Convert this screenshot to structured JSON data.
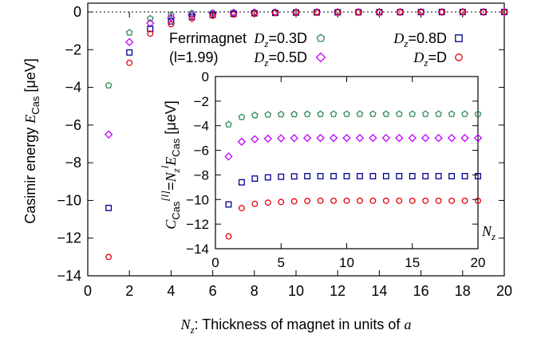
{
  "chart_data": {
    "type": "scatter",
    "xlabel_italic": "N",
    "xlabel_sub": "z",
    "xlabel_rest": ": Thickness of magnet in units of ",
    "xlabel_unit": "a",
    "ylabel_main": "Casimir energy ",
    "ylabel_var": "E",
    "ylabel_sub": "Cas",
    "ylabel_unit": " [μeV]",
    "xlim": [
      0,
      20
    ],
    "ylim": [
      -14,
      0.5
    ],
    "xticks": [
      "0",
      "2",
      "4",
      "6",
      "8",
      "10",
      "12",
      "14",
      "16",
      "18",
      "20"
    ],
    "xtick_values": [
      0,
      2,
      4,
      6,
      8,
      10,
      12,
      14,
      16,
      18,
      20
    ],
    "yticks": [
      "0",
      "−2",
      "−4",
      "−6",
      "−8",
      "−10",
      "−12",
      "−14"
    ],
    "ytick_values": [
      0,
      -2,
      -4,
      -6,
      -8,
      -10,
      -12,
      -14
    ],
    "legend_title_1": "Ferrimagnet",
    "legend_title_2": "(l=1.99)",
    "series": [
      {
        "name": "Dz=0.3D",
        "label_var": "D",
        "label_sub": "z",
        "label_rest": "=0.3D",
        "color": "#2e8b57",
        "marker": "pentagon",
        "x": [
          1,
          2,
          3,
          4,
          5,
          6,
          7,
          8,
          9,
          10,
          11,
          12,
          13,
          14,
          15,
          16,
          17,
          18,
          19,
          20
        ],
        "y": [
          -3.9,
          -1.1,
          -0.35,
          -0.15,
          -0.07,
          -0.04,
          -0.02,
          -0.015,
          -0.01,
          -0.007,
          -0.005,
          -0.004,
          -0.003,
          -0.0025,
          -0.002,
          -0.0015,
          -0.0012,
          -0.001,
          -0.0008,
          -0.0007
        ]
      },
      {
        "name": "Dz=0.5D",
        "label_var": "D",
        "label_sub": "z",
        "label_rest": "=0.5D",
        "color": "#c000ff",
        "marker": "diamond",
        "x": [
          1,
          2,
          3,
          4,
          5,
          6,
          7,
          8,
          9,
          10,
          11,
          12,
          13,
          14,
          15,
          16,
          17,
          18,
          19,
          20
        ],
        "y": [
          -6.5,
          -1.6,
          -0.6,
          -0.3,
          -0.15,
          -0.08,
          -0.05,
          -0.03,
          -0.02,
          -0.015,
          -0.01,
          -0.008,
          -0.006,
          -0.005,
          -0.004,
          -0.003,
          -0.0025,
          -0.002,
          -0.0015,
          -0.0012
        ]
      },
      {
        "name": "Dz=0.8D",
        "label_var": "D",
        "label_sub": "z",
        "label_rest": "=0.8D",
        "color": "#000090",
        "marker": "square",
        "x": [
          1,
          2,
          3,
          4,
          5,
          6,
          7,
          8,
          9,
          10,
          11,
          12,
          13,
          14,
          15,
          16,
          17,
          18,
          19,
          20
        ],
        "y": [
          -10.4,
          -2.15,
          -0.9,
          -0.5,
          -0.25,
          -0.15,
          -0.1,
          -0.07,
          -0.05,
          -0.035,
          -0.025,
          -0.02,
          -0.015,
          -0.012,
          -0.01,
          -0.008,
          -0.006,
          -0.005,
          -0.004,
          -0.0035
        ]
      },
      {
        "name": "Dz=D",
        "label_var": "D",
        "label_sub": "z",
        "label_rest": "=D",
        "color": "#e8000b",
        "marker": "circle",
        "x": [
          1,
          2,
          3,
          4,
          5,
          6,
          7,
          8,
          9,
          10,
          11,
          12,
          13,
          14,
          15,
          16,
          17,
          18,
          19,
          20
        ],
        "y": [
          -13.0,
          -2.7,
          -1.15,
          -0.65,
          -0.35,
          -0.2,
          -0.13,
          -0.09,
          -0.06,
          -0.045,
          -0.035,
          -0.028,
          -0.022,
          -0.018,
          -0.015,
          -0.012,
          -0.01,
          -0.008,
          -0.007,
          -0.006
        ]
      }
    ],
    "inset": {
      "xlim": [
        0,
        20
      ],
      "ylim": [
        -14,
        0
      ],
      "xticks": [
        "0",
        "5",
        "10",
        "15",
        "20"
      ],
      "xtick_values": [
        0,
        5,
        10,
        15,
        20
      ],
      "yticks": [
        "0",
        "−2",
        "−4",
        "−6",
        "−8",
        "−10",
        "−12",
        "−14"
      ],
      "ytick_values": [
        0,
        -2,
        -4,
        -6,
        -8,
        -10,
        -12,
        -14
      ],
      "xlabel_var": "N",
      "xlabel_sub": "z",
      "ylabel_c": "C",
      "ylabel_csub": "Cas",
      "ylabel_sup": "[l]",
      "ylabel_eq": "=",
      "ylabel_n": "N",
      "ylabel_nsub": "z",
      "ylabel_nsup": "l",
      "ylabel_e": "E",
      "ylabel_esub": "Cas",
      "ylabel_unit": " [μeV]",
      "series": [
        {
          "color": "#2e8b57",
          "marker": "pentagon",
          "x": [
            1,
            2,
            3,
            4,
            5,
            6,
            7,
            8,
            9,
            10,
            11,
            12,
            13,
            14,
            15,
            16,
            17,
            18,
            19,
            20
          ],
          "y": [
            -3.9,
            -3.3,
            -3.15,
            -3.1,
            -3.08,
            -3.07,
            -3.06,
            -3.06,
            -3.05,
            -3.05,
            -3.05,
            -3.05,
            -3.05,
            -3.05,
            -3.05,
            -3.05,
            -3.05,
            -3.05,
            -3.05,
            -3.05
          ]
        },
        {
          "color": "#c000ff",
          "marker": "diamond",
          "x": [
            1,
            2,
            3,
            4,
            5,
            6,
            7,
            8,
            9,
            10,
            11,
            12,
            13,
            14,
            15,
            16,
            17,
            18,
            19,
            20
          ],
          "y": [
            -6.5,
            -5.3,
            -5.1,
            -5.05,
            -5.02,
            -5.01,
            -5.0,
            -5.0,
            -5.0,
            -5.0,
            -5.0,
            -5.0,
            -5.0,
            -5.0,
            -5.0,
            -5.0,
            -5.0,
            -5.0,
            -5.0,
            -5.0
          ]
        },
        {
          "color": "#000090",
          "marker": "square",
          "x": [
            1,
            2,
            3,
            4,
            5,
            6,
            7,
            8,
            9,
            10,
            11,
            12,
            13,
            14,
            15,
            16,
            17,
            18,
            19,
            20
          ],
          "y": [
            -10.4,
            -8.6,
            -8.3,
            -8.2,
            -8.15,
            -8.12,
            -8.1,
            -8.1,
            -8.1,
            -8.1,
            -8.1,
            -8.1,
            -8.1,
            -8.1,
            -8.1,
            -8.1,
            -8.1,
            -8.1,
            -8.1,
            -8.1
          ]
        },
        {
          "color": "#e8000b",
          "marker": "circle",
          "x": [
            1,
            2,
            3,
            4,
            5,
            6,
            7,
            8,
            9,
            10,
            11,
            12,
            13,
            14,
            15,
            16,
            17,
            18,
            19,
            20
          ],
          "y": [
            -13.0,
            -10.7,
            -10.35,
            -10.25,
            -10.2,
            -10.15,
            -10.12,
            -10.1,
            -10.1,
            -10.1,
            -10.1,
            -10.1,
            -10.1,
            -10.1,
            -10.1,
            -10.1,
            -10.1,
            -10.1,
            -10.1,
            -10.1
          ]
        }
      ]
    }
  }
}
